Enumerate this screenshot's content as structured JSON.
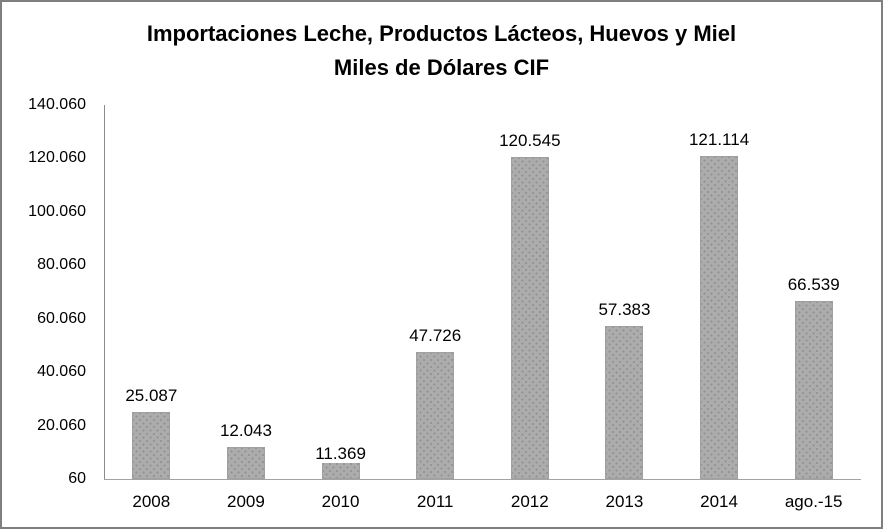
{
  "chart_data": {
    "type": "bar",
    "title": "Importaciones Leche, Productos Lácteos, Huevos y Miel",
    "subtitle": "Miles de Dólares CIF",
    "categories": [
      "2008",
      "2009",
      "2010",
      "2011",
      "2012",
      "2013",
      "2014",
      "ago.-15"
    ],
    "values": [
      25087,
      12043,
      11369,
      47726,
      120545,
      57383,
      121114,
      66539
    ],
    "data_labels": [
      "25.087",
      "12.043",
      "11.369",
      "47.726",
      "120.545",
      "57.383",
      "121.114",
      "66.539"
    ],
    "y_ticks": [
      {
        "value": 140060,
        "label": "140.060"
      },
      {
        "value": 120060,
        "label": "120.060"
      },
      {
        "value": 100060,
        "label": "100.060"
      },
      {
        "value": 80060,
        "label": "80.060"
      },
      {
        "value": 60060,
        "label": "60.060"
      },
      {
        "value": 40060,
        "label": "40.060"
      },
      {
        "value": 20060,
        "label": "20.060"
      },
      {
        "value": 60,
        "label": "60"
      }
    ],
    "ylim": [
      60,
      140060
    ],
    "xlabel": "",
    "ylabel": "",
    "grid": false,
    "legend": false,
    "bar_color": "#acacac",
    "bar_dot_color": "#909090",
    "axis_color": "#8c8c8c",
    "frame_border_color": "#7f7f7f",
    "overlap_label_categories": [
      "2010"
    ]
  }
}
